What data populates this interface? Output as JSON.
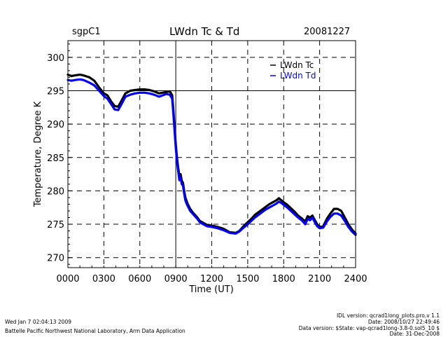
{
  "header": {
    "site": "sgpC1",
    "title": "LWdn Tc & Td",
    "date": "20081227"
  },
  "footer": {
    "left_line1": "Wed Jan  7 02:04:13 2009",
    "left_line2": "Battelle Pacific Northwest National Laboratory, Arm Data Application",
    "right_line1": "IDL version: qcrad1long_plots.pro,v 1.1",
    "right_line2": "Date: 2008/10/27 22:49:46",
    "right_line3": "Data version: $State: vap-qcrad1long-3.8-0.sol5_10 $",
    "right_line4": "Date: 31-Dec-2008"
  },
  "chart_data": {
    "type": "line",
    "title": "LWdn Tc & Td",
    "xlabel": "Time (UT)",
    "ylabel": "Temperature, Degree K",
    "xlim": [
      0,
      24
    ],
    "ylim": [
      268.5,
      302.5
    ],
    "x_tick_labels": [
      "0000",
      "0300",
      "0600",
      "0900",
      "1200",
      "1500",
      "1800",
      "2100",
      "2400"
    ],
    "x_tick_values": [
      0,
      3,
      6,
      9,
      12,
      15,
      18,
      21,
      24
    ],
    "y_tick_labels": [
      "270",
      "275",
      "280",
      "285",
      "290",
      "295",
      "300"
    ],
    "y_tick_values": [
      270,
      275,
      280,
      285,
      290,
      295,
      300
    ],
    "grid": "dashed",
    "legend_position": "top-right",
    "series": [
      {
        "name": "LWdn Tc",
        "color": "#000000",
        "x": [
          0,
          0.3,
          0.6,
          1.0,
          1.3,
          1.8,
          2.2,
          2.6,
          3.0,
          3.3,
          3.6,
          3.9,
          4.2,
          4.5,
          4.8,
          5.2,
          5.6,
          6.0,
          6.4,
          6.8,
          7.2,
          7.6,
          7.9,
          8.2,
          8.5,
          8.7,
          8.8,
          8.9,
          9.0,
          9.1,
          9.2,
          9.3,
          9.4,
          9.5,
          9.6,
          9.7,
          9.8,
          9.9,
          10.0,
          10.2,
          10.4,
          10.6,
          10.8,
          11.0,
          11.3,
          11.6,
          12.0,
          12.5,
          13.0,
          13.5,
          14.0,
          14.3,
          14.6,
          15.0,
          15.3,
          15.6,
          15.9,
          16.2,
          16.5,
          16.8,
          17.1,
          17.4,
          17.6,
          17.8,
          18.0,
          18.3,
          18.6,
          18.9,
          19.2,
          19.5,
          19.8,
          20.0,
          20.2,
          20.4,
          20.6,
          20.8,
          21.0,
          21.3,
          21.6,
          21.9,
          22.2,
          22.5,
          22.8,
          23.1,
          23.4,
          23.7,
          24.0
        ],
        "values": [
          297.4,
          297.2,
          297.3,
          297.4,
          297.3,
          297.0,
          296.5,
          295.5,
          294.6,
          294.3,
          293.4,
          292.7,
          292.6,
          293.6,
          294.6,
          295.0,
          295.1,
          295.2,
          295.2,
          295.1,
          294.9,
          294.6,
          294.7,
          294.8,
          294.9,
          294.3,
          292.0,
          289.5,
          287.0,
          285.0,
          283.5,
          282.2,
          282.5,
          281.5,
          281.2,
          280.0,
          279.0,
          278.5,
          278.0,
          277.3,
          276.8,
          276.4,
          276.0,
          275.5,
          275.2,
          274.9,
          274.8,
          274.6,
          274.3,
          273.8,
          273.7,
          274.0,
          274.6,
          275.3,
          275.8,
          276.4,
          276.8,
          277.2,
          277.6,
          278.0,
          278.3,
          278.6,
          278.9,
          278.6,
          278.3,
          277.9,
          277.4,
          276.9,
          276.3,
          275.9,
          275.4,
          276.2,
          276.0,
          276.3,
          275.6,
          275.0,
          274.6,
          274.7,
          275.8,
          276.6,
          277.3,
          277.3,
          277.0,
          276.0,
          275.0,
          274.2,
          273.6
        ]
      },
      {
        "name": "LWdn Td",
        "color": "#0000ff",
        "x": [
          0,
          0.3,
          0.6,
          1.0,
          1.3,
          1.8,
          2.2,
          2.6,
          3.0,
          3.3,
          3.6,
          3.9,
          4.2,
          4.5,
          4.8,
          5.2,
          5.6,
          6.0,
          6.4,
          6.8,
          7.2,
          7.6,
          7.9,
          8.2,
          8.5,
          8.7,
          8.8,
          8.9,
          9.0,
          9.1,
          9.2,
          9.3,
          9.4,
          9.5,
          9.6,
          9.7,
          9.8,
          9.9,
          10.0,
          10.2,
          10.4,
          10.6,
          10.8,
          11.0,
          11.3,
          11.6,
          12.0,
          12.5,
          13.0,
          13.5,
          14.0,
          14.3,
          14.6,
          15.0,
          15.3,
          15.6,
          15.9,
          16.2,
          16.5,
          16.8,
          17.1,
          17.4,
          17.6,
          17.8,
          18.0,
          18.3,
          18.6,
          18.9,
          19.2,
          19.5,
          19.8,
          20.0,
          20.2,
          20.4,
          20.6,
          20.8,
          21.0,
          21.3,
          21.6,
          21.9,
          22.2,
          22.5,
          22.8,
          23.1,
          23.4,
          23.7,
          24.0
        ],
        "values": [
          296.6,
          296.5,
          296.6,
          296.7,
          296.6,
          296.2,
          295.8,
          295.0,
          294.2,
          293.8,
          293.0,
          292.2,
          292.1,
          293.1,
          294.1,
          294.4,
          294.6,
          294.7,
          294.7,
          294.6,
          294.4,
          294.1,
          294.3,
          294.5,
          294.4,
          293.8,
          291.5,
          289.0,
          286.5,
          284.5,
          283.0,
          281.6,
          282.0,
          281.0,
          280.8,
          279.6,
          278.6,
          278.1,
          277.7,
          277.0,
          276.6,
          276.2,
          275.8,
          275.3,
          275.0,
          274.7,
          274.6,
          274.4,
          274.1,
          273.7,
          273.6,
          273.9,
          274.4,
          275.0,
          275.5,
          276.0,
          276.4,
          276.8,
          277.2,
          277.5,
          277.8,
          278.1,
          278.4,
          278.2,
          277.9,
          277.5,
          277.0,
          276.5,
          276.0,
          275.6,
          275.0,
          275.8,
          275.6,
          276.0,
          275.3,
          274.7,
          274.4,
          274.5,
          275.4,
          276.1,
          276.6,
          276.6,
          276.3,
          275.5,
          274.6,
          273.9,
          273.4
        ]
      }
    ]
  }
}
